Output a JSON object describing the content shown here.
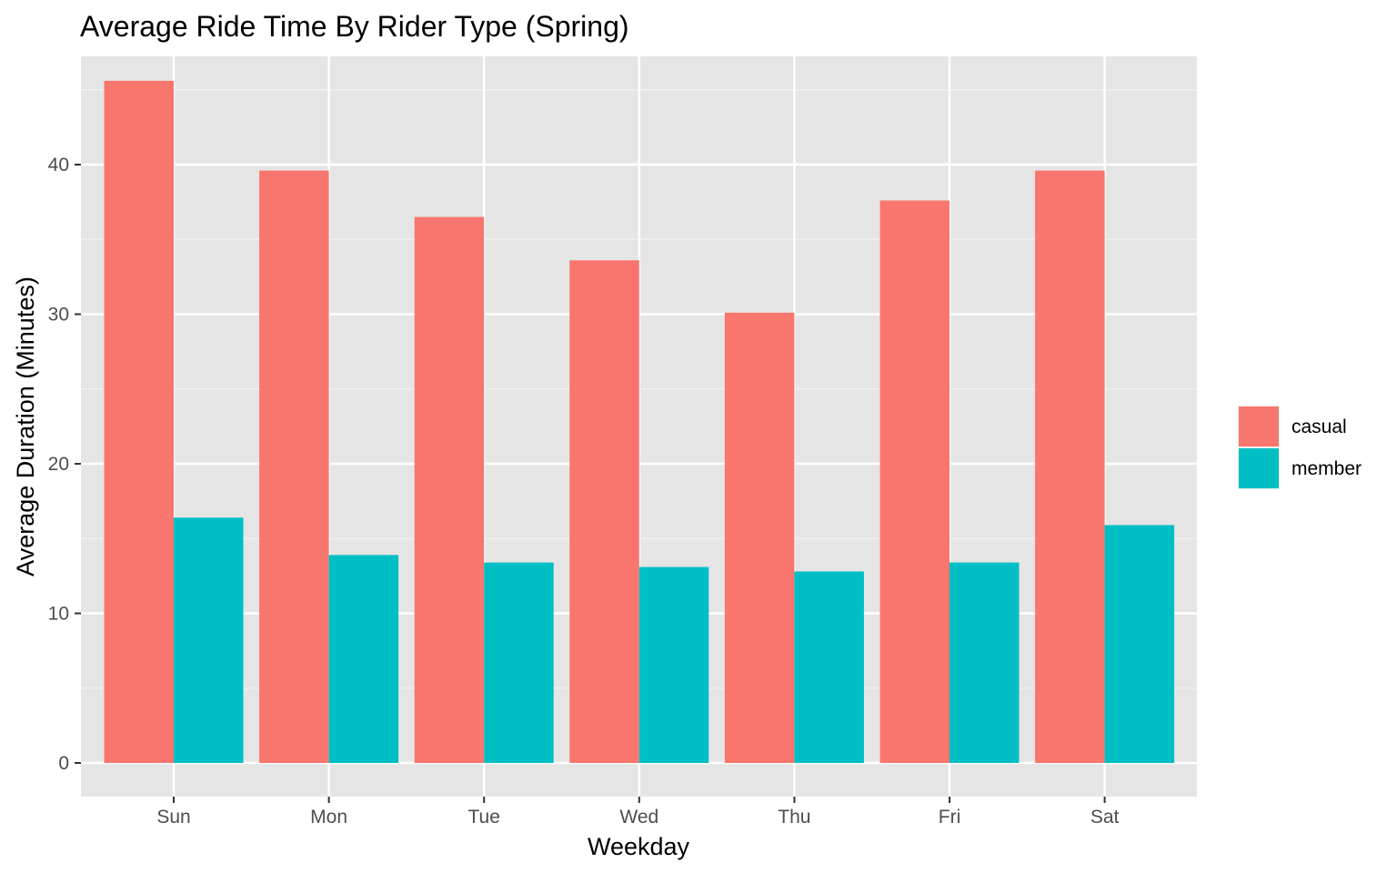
{
  "chart_data": {
    "type": "bar",
    "title": "Average Ride Time By Rider Type (Spring)",
    "xlabel": "Weekday",
    "ylabel": "Average Duration (Minutes)",
    "categories": [
      "Sun",
      "Mon",
      "Tue",
      "Wed",
      "Thu",
      "Fri",
      "Sat"
    ],
    "series": [
      {
        "name": "casual",
        "color": "#F8766D",
        "values": [
          45.6,
          39.6,
          36.5,
          33.6,
          30.1,
          37.6,
          39.6
        ]
      },
      {
        "name": "member",
        "color": "#00BFC4",
        "values": [
          16.4,
          13.9,
          13.4,
          13.1,
          12.8,
          13.4,
          15.9
        ]
      }
    ],
    "ylim": [
      0,
      45.6
    ],
    "yticks": [
      0,
      10,
      20,
      30,
      40
    ],
    "ytick_labels": [
      "0",
      "10",
      "20",
      "30",
      "40"
    ],
    "grid": true,
    "panel_background": "#E5E5E5",
    "legend_position": "right"
  }
}
